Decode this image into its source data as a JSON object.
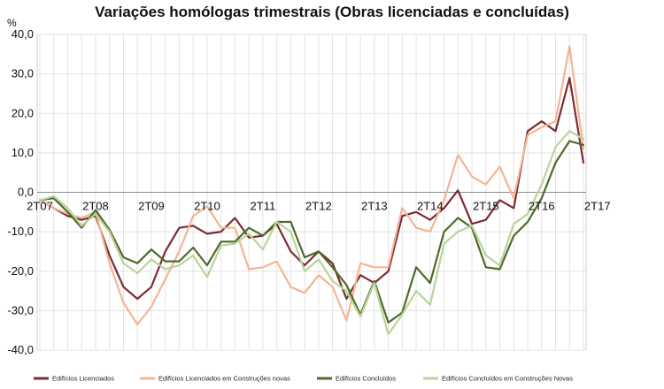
{
  "chart_data": {
    "type": "line",
    "title": "Variações homólogas trimestrais (Obras licenciadas e concluídas)",
    "ylabel": "%",
    "ylim": [
      -40,
      40
    ],
    "yticks": [
      "40,0",
      "30,0",
      "20,0",
      "10,0",
      "0,0",
      "-10,0",
      "-20,0",
      "-30,0",
      "-40,0"
    ],
    "ytick_values": [
      40,
      30,
      20,
      10,
      0,
      -10,
      -20,
      -30,
      -40
    ],
    "x_tick_labels": [
      "2T07",
      "2T08",
      "2T09",
      "2T10",
      "2T11",
      "2T12",
      "2T13",
      "2T14",
      "2T15",
      "2T16",
      "2T17"
    ],
    "x_tick_index": [
      0,
      4,
      8,
      12,
      16,
      20,
      24,
      28,
      32,
      36,
      40
    ],
    "grid": true,
    "legend_position": "bottom",
    "series": [
      {
        "name": "Edifícios Licenciados",
        "color": "#7b2c34",
        "values": [
          -2,
          -4,
          -6,
          -7,
          -6,
          -16,
          -24,
          -27,
          -24,
          -15,
          -9,
          -8.5,
          -10.5,
          -10,
          -6.5,
          -11.5,
          -11,
          -8,
          -15,
          -18.5,
          -15,
          -18,
          -27,
          -21,
          -23,
          -20,
          -6,
          -5,
          -7,
          -4,
          0.5,
          -8,
          -7,
          -2,
          -4,
          15.5,
          18,
          15.5,
          29,
          7.5
        ]
      },
      {
        "name": "Edifícios Licenciados em Construções novas",
        "color": "#f2b596",
        "values": [
          -2,
          -4,
          -5.5,
          -6.5,
          -5,
          -18,
          -28,
          -33.5,
          -29,
          -22,
          -15,
          -6,
          -3.5,
          -9,
          -9,
          -19.5,
          -19,
          -17.5,
          -24,
          -25.5,
          -21,
          -24,
          -32.5,
          -18,
          -19,
          -19,
          -4,
          -9,
          -10,
          -2,
          9.5,
          4,
          2,
          6.5,
          -1.5,
          14.5,
          16.5,
          18,
          37,
          11
        ]
      },
      {
        "name": "Edifícios Concluídos",
        "color": "#4e6a2b",
        "values": [
          -2,
          -1.5,
          -5,
          -9,
          -4.5,
          -9.5,
          -16.5,
          -18,
          -14.5,
          -17.5,
          -17.5,
          -14,
          -18.5,
          -12.5,
          -12.5,
          -9,
          -11,
          -7.5,
          -7.5,
          -16.5,
          -15,
          -19,
          -23.5,
          -31,
          -22.5,
          -33,
          -30.5,
          -19,
          -23,
          -10,
          -6.5,
          -9,
          -19,
          -19.5,
          -11,
          -7.5,
          -1.5,
          7.5,
          13,
          12
        ]
      },
      {
        "name": "Edifícios Concluídos em Construções Novas",
        "color": "#b9d49b",
        "values": [
          -2,
          -1,
          -4,
          -8.5,
          -5.5,
          -10,
          -18,
          -20.5,
          -17,
          -19.5,
          -18.5,
          -16,
          -21.5,
          -13.5,
          -13,
          -10.5,
          -14.5,
          -7.5,
          -10,
          -20,
          -17,
          -22.5,
          -25,
          -31.5,
          -23,
          -36,
          -31,
          -25,
          -28.5,
          -13,
          -10,
          -8.5,
          -16,
          -18.5,
          -8,
          -5.5,
          2,
          11.5,
          15.5,
          13.5
        ]
      }
    ]
  }
}
